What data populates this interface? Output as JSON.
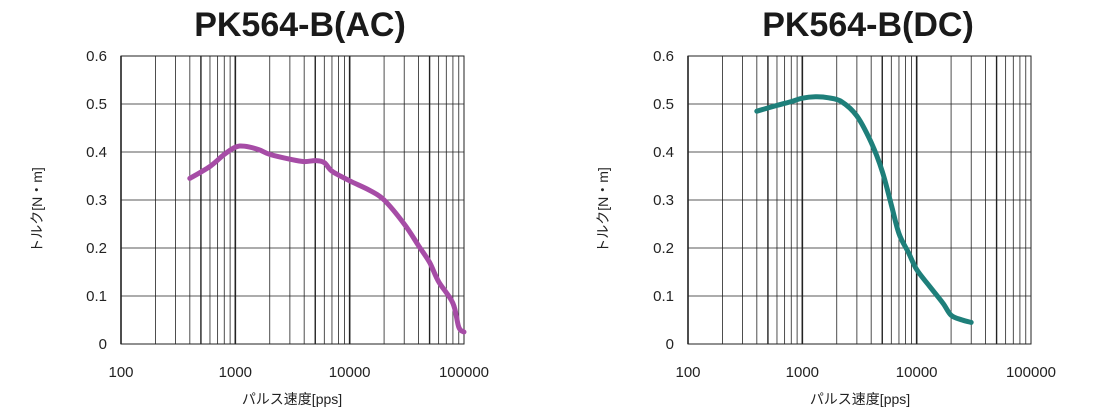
{
  "colors": {
    "ac": "#a64ca6",
    "dc": "#1e7f7a"
  },
  "chart_data": [
    {
      "type": "line",
      "title": "PK564-B(AC)",
      "xlabel": "パルス速度[pps]",
      "ylabel": "トルク[N・m]",
      "xscale": "log",
      "xlim": [
        100,
        100000
      ],
      "ylim": [
        0,
        0.6
      ],
      "xticks": [
        "100",
        "1000",
        "10000",
        "100000"
      ],
      "yticks": [
        "0",
        "0.1",
        "0.2",
        "0.3",
        "0.4",
        "0.5",
        "0.6"
      ],
      "grid": true,
      "color_key": "ac",
      "x": [
        400,
        600,
        800,
        1000,
        1200,
        1600,
        2000,
        3000,
        4000,
        5000,
        6000,
        7000,
        10000,
        15000,
        20000,
        30000,
        40000,
        50000,
        60000,
        80000,
        90000,
        100000
      ],
      "y": [
        0.345,
        0.37,
        0.395,
        0.41,
        0.412,
        0.405,
        0.395,
        0.385,
        0.38,
        0.382,
        0.378,
        0.36,
        0.34,
        0.32,
        0.3,
        0.25,
        0.205,
        0.17,
        0.13,
        0.085,
        0.035,
        0.025
      ]
    },
    {
      "type": "line",
      "title": "PK564-B(DC)",
      "xlabel": "パルス速度[pps]",
      "ylabel": "トルク[N・m]",
      "xscale": "log",
      "xlim": [
        100,
        100000
      ],
      "ylim": [
        0,
        0.6
      ],
      "xticks": [
        "100",
        "1000",
        "10000",
        "100000"
      ],
      "yticks": [
        "0",
        "0.1",
        "0.2",
        "0.3",
        "0.4",
        "0.5",
        "0.6"
      ],
      "grid": true,
      "color_key": "dc",
      "x": [
        400,
        600,
        800,
        1000,
        1300,
        1700,
        2200,
        3000,
        4000,
        5000,
        6000,
        7000,
        8500,
        10000,
        13000,
        17000,
        20000,
        25000,
        30000
      ],
      "y": [
        0.485,
        0.497,
        0.505,
        0.512,
        0.515,
        0.513,
        0.505,
        0.475,
        0.42,
        0.36,
        0.29,
        0.23,
        0.19,
        0.155,
        0.12,
        0.085,
        0.06,
        0.05,
        0.045
      ]
    }
  ]
}
